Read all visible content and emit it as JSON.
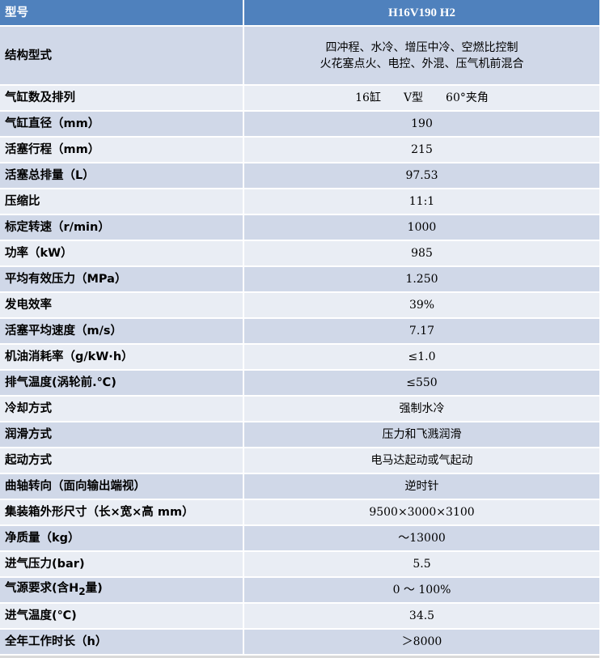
{
  "colors": {
    "header": "#4f81bd",
    "row_dark": "#d0d8e8",
    "row_light": "#e9edf4"
  },
  "header": {
    "label": "型号",
    "value": "H16V190 H2"
  },
  "rows": [
    {
      "label": "结构型式",
      "lines": [
        "四冲程、水冷、增压中冷、空燃比控制",
        "火花塞点火、电控、外混、压气机前混合"
      ]
    },
    {
      "label": "气缸数及排列",
      "value": "16缸　　V型　　60°夹角"
    },
    {
      "label": "气缸直径（mm）",
      "value": "190"
    },
    {
      "label": "活塞行程（mm）",
      "value": "215"
    },
    {
      "label": "活塞总排量（L）",
      "value": "97.53"
    },
    {
      "label": "压缩比",
      "value": "11:1"
    },
    {
      "label": "标定转速（r/min）",
      "value": "1000"
    },
    {
      "label": "功率（kW）",
      "value": "985"
    },
    {
      "label": "平均有效压力（MPa）",
      "value": "1.250"
    },
    {
      "label": "发电效率",
      "value": "39%"
    },
    {
      "label": "活塞平均速度（m/s）",
      "value": "7.17"
    },
    {
      "label": "机油消耗率（g/kW·h）",
      "value": "≤1.0"
    },
    {
      "label": "排气温度(涡轮前.℃)",
      "value": "≤550"
    },
    {
      "label": "冷却方式",
      "value": "强制水冷"
    },
    {
      "label": "润滑方式",
      "value": "压力和飞溅润滑"
    },
    {
      "label": "起动方式",
      "value": "电马达起动或气起动"
    },
    {
      "label": "曲轴转向（面向输出端视）",
      "value": "逆时针"
    },
    {
      "label": "集装箱外形尺寸（长×宽×高 mm）",
      "value": "9500×3000×3100"
    },
    {
      "label": "净质量（kg）",
      "value": "～13000"
    },
    {
      "label": "进气压力(bar)",
      "value": "5.5"
    },
    {
      "label_pre": "气源要求(含H",
      "label_sub": "2",
      "label_post": "量)",
      "value": "0 ～ 100%"
    },
    {
      "label": "进气温度(℃)",
      "value": "34.5"
    },
    {
      "label": "全年工作时长（h）",
      "value": "＞8000"
    }
  ]
}
